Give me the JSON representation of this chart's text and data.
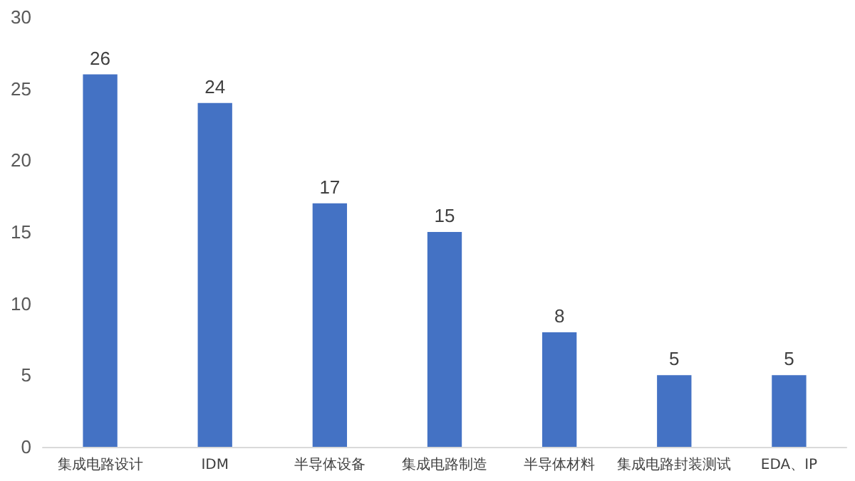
{
  "chart_data": {
    "type": "bar",
    "categories": [
      "集成电路设计",
      "IDM",
      "半导体设备",
      "集成电路制造",
      "半导体材料",
      "集成电路封装测试",
      "EDA、IP"
    ],
    "values": [
      26,
      24,
      17,
      15,
      8,
      5,
      5
    ],
    "color": "#4472c4",
    "ylim": [
      0,
      30
    ],
    "yticks": [
      0,
      5,
      10,
      15,
      20,
      25,
      30
    ],
    "grid": false,
    "data_labels": true
  }
}
